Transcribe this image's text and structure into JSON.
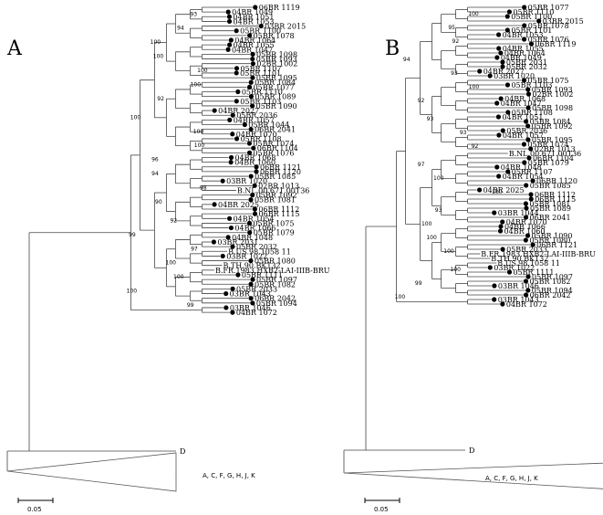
{
  "panels": [
    {
      "id": "A",
      "title": "A",
      "scale_label": "0.05",
      "outgroup_label": "D",
      "collapsed_label": "A, C, F, G, H, J, K",
      "bootstraps": [
        "93",
        "94",
        "100",
        "100",
        "100",
        "100",
        "92",
        "100",
        "100",
        "100",
        "96",
        "94",
        "98",
        "90",
        "92",
        "99",
        "97",
        "100",
        "100",
        "100",
        "99"
      ],
      "taxa": [
        "06BR 1119",
        "04BR 1049",
        "04BR 1051",
        "04BR 1053",
        "03BR 2015",
        "05BR 1100",
        "05BR 1078",
        "04BR 1064",
        "04BR 1055",
        "04BR 1047",
        "05BR 1098",
        "05BR 1093",
        "02BR 1002",
        "05BR 1107",
        "05BR 1101",
        "05BR 1095",
        "05BR 1084",
        "05BR 1077",
        "05BR 1110",
        "05BR 1089",
        "05BR 1103",
        "05BR 1090",
        "04BR 2027",
        "05BR 2036",
        "04BR 1057",
        "05BR 1044",
        "06BR 2041",
        "04BR 1070",
        "05BR 1108",
        "05BR 1074",
        "06BR 1104",
        "05BR 1076",
        "04BR 1068",
        "04BR 1060",
        "06BR 1121",
        "06BR 1120",
        "05BR 1085",
        "03BR 1020",
        "02BR 1013",
        "B.NL.00.671 00T36",
        "05BR 1092",
        "05BR 1081",
        "04BR 2025",
        "06BR 1112",
        "06BR 1115",
        "04BR 1054",
        "05BR 1075",
        "04BR 1066",
        "05BR 1079",
        "04BR 1048",
        "03BR 2031",
        "05BR 2032",
        "B.US.98.1058 11",
        "03BR 1022",
        "05BR 1080",
        "B.TH.90.BK132",
        "B.FR.1983.HXB2-LAI-IIIB-BRU",
        "05BR 1111",
        "05BR 1097",
        "05BR 1082",
        "05BR 2033",
        "03BR 1043",
        "06BR 2042",
        "05BR 1094",
        "03BR 1046",
        "04BR 1072"
      ]
    },
    {
      "id": "B",
      "title": "B",
      "scale_label": "0.05",
      "outgroup_label": "D",
      "collapsed_label": "A, C, F, G, H, J, K",
      "bootstraps": [
        "100",
        "95",
        "92",
        "94",
        "93",
        "100",
        "92",
        "93",
        "93",
        "92",
        "97",
        "100",
        "100",
        "93",
        "100",
        "100",
        "100",
        "100",
        "99",
        "100"
      ],
      "taxa": [
        "05BR 1077",
        "05BR 1110",
        "05BR 1100",
        "03BR 2015",
        "05BR 1078",
        "05BR 1101",
        "04BR 1053",
        "05BR 1076",
        "06BR 1119",
        "04BR 1055",
        "04BR 1064",
        "04BR 1049",
        "05BR 2031",
        "05BR 2032",
        "04BR 2027",
        "03BR 1020",
        "05BR 1075",
        "05BR 1103",
        "05BR 1093",
        "02BR 1002",
        "04BR 1068",
        "04BR 1047",
        "05BR 1098",
        "05BR 1108",
        "04BR 1051",
        "05BR 1084",
        "05BR 1092",
        "05BR 2036",
        "04BR 1057",
        "05BR 1095",
        "05BR 1074",
        "02BR 1013",
        "B.NL.00.671 00T36",
        "06BR 1104",
        "05BR 1079",
        "04BR 1048",
        "05BR 1107",
        "04BR 1054",
        "06BR 1120",
        "05BR 1085",
        "04BR 2025",
        "06BR 1112",
        "06BR 1115",
        "05BR 1081",
        "05BR 1089",
        "03BR 1044",
        "06BR 2041",
        "04BR 1070",
        "04BR 1066",
        "04BR 1060",
        "05BR 1090",
        "05BR 1080",
        "06BR 1121",
        "05BR 2033",
        "B.FR.1983.HXB2-LAI-IIIB-BRU",
        "B.TH.90.BK132",
        "B.US.98.1058 11",
        "03BR 1022",
        "05BR 1111",
        "05BR 1097",
        "05BR 1082",
        "03BR 1046",
        "05BR 1094",
        "06BR 2042",
        "03BR 1043",
        "04BR 1072"
      ]
    }
  ]
}
